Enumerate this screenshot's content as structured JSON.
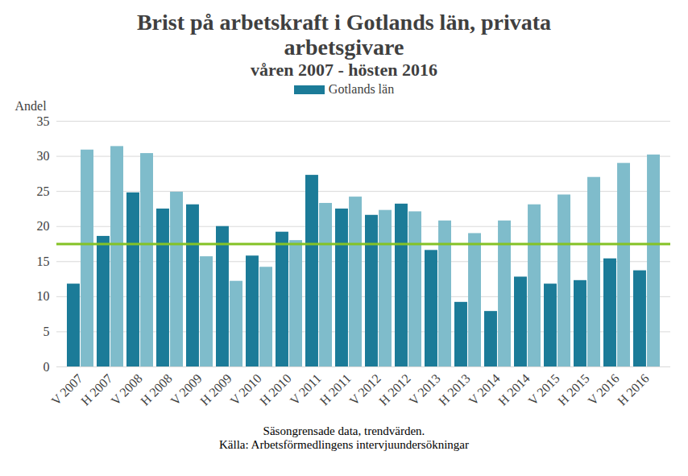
{
  "chart_data": {
    "type": "bar",
    "title": "Brist på arbetskraft i Gotlands län, privata arbetsgivare",
    "subtitle": "våren 2007 - hösten 2016",
    "y_label": "Andel",
    "categories": [
      "V 2007",
      "H 2007",
      "V 2008",
      "H 2008",
      "V 2009",
      "H 2009",
      "V 2010",
      "H 2010",
      "V 2011",
      "H 2011",
      "V 2012",
      "H 2012",
      "V 2013",
      "H 2013",
      "V 2014",
      "H 2014",
      "V 2015",
      "H 2015",
      "V 2016",
      "H 2016"
    ],
    "series": [
      {
        "name": "Gotlands län",
        "color": "#1b7b98",
        "values": [
          11.8,
          18.6,
          24.8,
          22.5,
          23.1,
          20.0,
          15.8,
          19.2,
          27.3,
          22.5,
          21.6,
          23.2,
          16.6,
          9.2,
          7.9,
          12.8,
          11.8,
          12.3,
          15.4,
          13.7
        ]
      },
      {
        "name": null,
        "color": "#7fbccb",
        "values": [
          30.9,
          31.4,
          30.4,
          24.9,
          15.7,
          12.2,
          14.2,
          18.0,
          23.3,
          24.2,
          22.3,
          22.1,
          20.8,
          19.0,
          20.8,
          23.1,
          24.5,
          27.0,
          29.0,
          30.2
        ]
      }
    ],
    "reference_line": {
      "value": 17.5,
      "color": "#84c225"
    },
    "ylim": [
      0,
      35
    ],
    "yticks": [
      0,
      5,
      10,
      15,
      20,
      25,
      30,
      35
    ],
    "grid": true,
    "legend": "top",
    "notes": [
      "Säsongrensade data, trendvärden.",
      "Källa: Arbetsförmedlingens intervjuundersökningar"
    ]
  }
}
